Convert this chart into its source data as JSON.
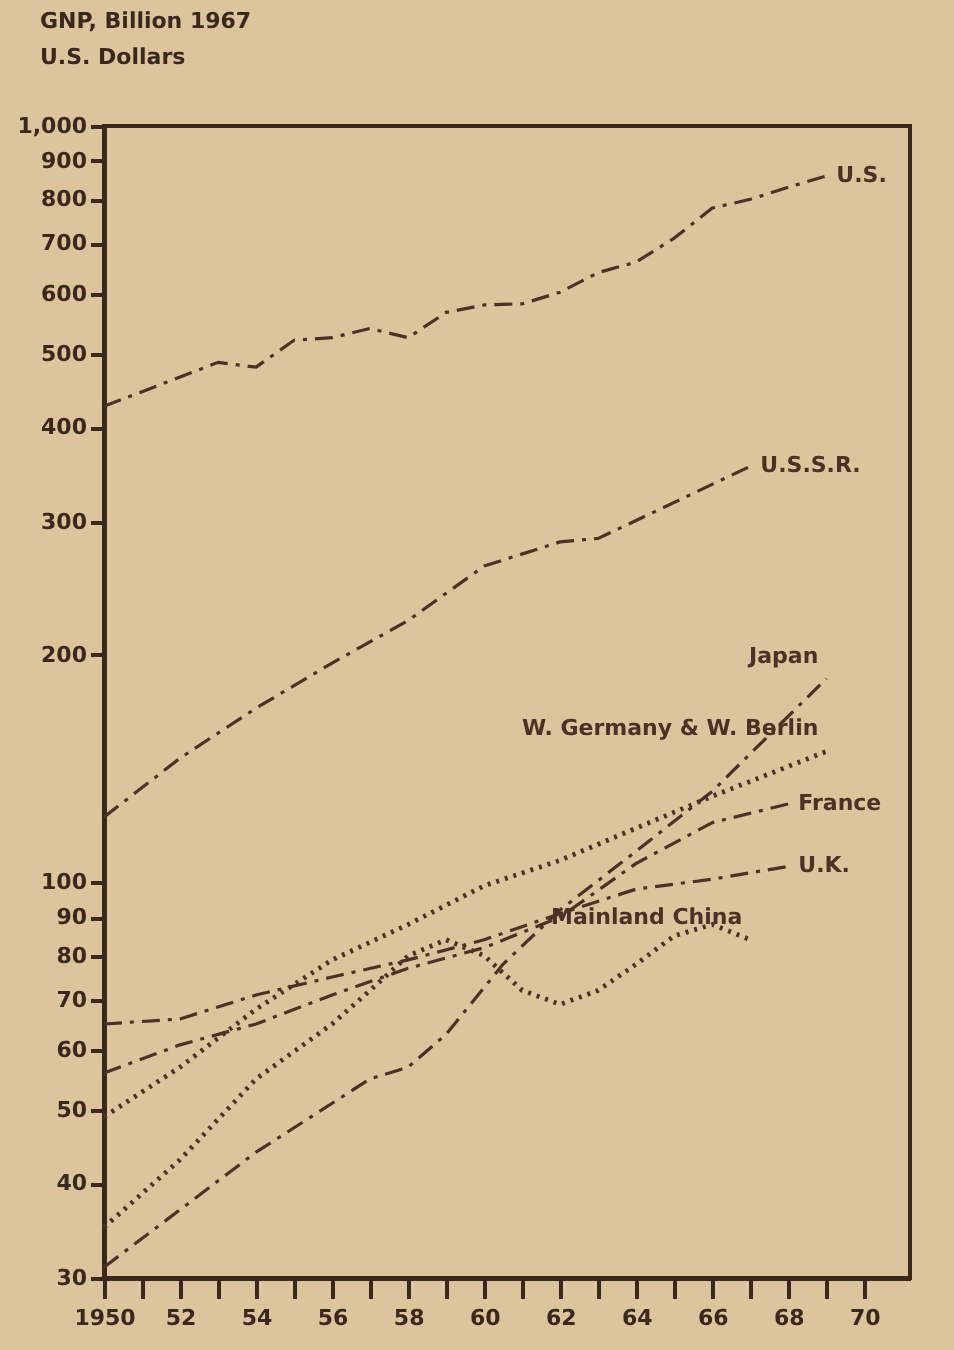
{
  "chart_data": {
    "type": "line",
    "ylabel": "GNP, Billion 1967\nU.S. Dollars",
    "log": "y",
    "grid": false,
    "xlim": [
      1950,
      1971.2
    ],
    "ylim": [
      30,
      1000
    ],
    "xticks": [
      1950,
      {
        "value": 1951,
        "label": null
      },
      {
        "value": 1952,
        "label": "52"
      },
      {
        "value": 1953,
        "label": null
      },
      {
        "value": 1954,
        "label": "54"
      },
      {
        "value": 1955,
        "label": null
      },
      {
        "value": 1956,
        "label": "56"
      },
      {
        "value": 1957,
        "label": null
      },
      {
        "value": 1958,
        "label": "58"
      },
      {
        "value": 1959,
        "label": null
      },
      {
        "value": 1960,
        "label": "60"
      },
      {
        "value": 1961,
        "label": null
      },
      {
        "value": 1962,
        "label": "62"
      },
      {
        "value": 1963,
        "label": null
      },
      {
        "value": 1964,
        "label": "64"
      },
      {
        "value": 1965,
        "label": null
      },
      {
        "value": 1966,
        "label": "66"
      },
      {
        "value": 1967,
        "label": null
      },
      {
        "value": 1968,
        "label": "68"
      },
      {
        "value": 1969,
        "label": null
      },
      {
        "value": 1970,
        "label": "70"
      }
    ],
    "yticks": [
      30,
      40,
      50,
      60,
      70,
      80,
      90,
      100,
      200,
      300,
      400,
      500,
      600,
      700,
      800,
      900,
      {
        "value": 1000,
        "label": "1,000"
      }
    ],
    "series": [
      {
        "name": "U.S.",
        "color": "#4a3326",
        "line_style": "dashed",
        "x": [
          1950,
          1953,
          1954,
          1955,
          1956,
          1957,
          1958,
          1959,
          1960,
          1961,
          1962,
          1963,
          1964,
          1965,
          1966,
          1967,
          1968,
          1969
        ],
        "values": [
          426,
          487,
          480,
          521,
          525,
          540,
          525,
          567,
          580,
          582,
          603,
          640,
          661,
          711,
          779,
          800,
          830,
          859
        ]
      },
      {
        "name": "U.S.S.R.",
        "color": "#4a3326",
        "line_style": "dashed",
        "x": [
          1950,
          1952,
          1954,
          1956,
          1958,
          1960,
          1962,
          1963,
          1965,
          1967
        ],
        "values": [
          122,
          146,
          170,
          195,
          222,
          262,
          282,
          285,
          318,
          355
        ]
      },
      {
        "name": "Japan",
        "color": "#4a3326",
        "line_style": "dashed",
        "x": [
          1950,
          1954,
          1957,
          1958,
          1959,
          1960.5,
          1962,
          1964,
          1966,
          1969
        ],
        "values": [
          31,
          44,
          55,
          57,
          63,
          78,
          92,
          110,
          132,
          186
        ]
      },
      {
        "name": "W. Germany & W. Berlin",
        "color": "#4a3326",
        "line_style": "dotted",
        "x": [
          1950,
          1952,
          1954,
          1956,
          1958,
          1960,
          1962,
          1964,
          1966,
          1969
        ],
        "values": [
          49,
          57,
          68,
          79,
          88,
          99,
          107,
          118,
          130,
          149
        ]
      },
      {
        "name": "France",
        "color": "#4a3326",
        "line_style": "dashed",
        "x": [
          1950,
          1952,
          1954,
          1956,
          1958,
          1960,
          1962,
          1964,
          1966,
          1968
        ],
        "values": [
          56,
          61,
          65,
          71,
          77,
          82,
          90,
          106,
          120,
          127
        ]
      },
      {
        "name": "U.K.",
        "color": "#4a3326",
        "line_style": "dashed",
        "x": [
          1950,
          1952,
          1954,
          1956,
          1958,
          1960,
          1962,
          1964,
          1966,
          1968
        ],
        "values": [
          65,
          66,
          71,
          75,
          79,
          84,
          91,
          98,
          101,
          105
        ]
      },
      {
        "name": "Mainland China",
        "color": "#4a3326",
        "line_style": "dotted",
        "x": [
          1950,
          1952,
          1954,
          1956,
          1957,
          1958,
          1959,
          1960,
          1961,
          1962,
          1963,
          1964,
          1965,
          1966,
          1967
        ],
        "values": [
          35,
          43,
          55,
          65,
          72,
          80,
          84,
          80,
          72,
          69,
          72,
          78,
          85,
          88,
          84
        ]
      }
    ]
  }
}
